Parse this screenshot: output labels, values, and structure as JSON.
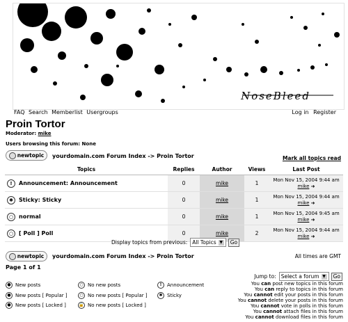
{
  "banner": {
    "logo_text": "NoseBleed"
  },
  "topnav": {
    "left": [
      "FAQ",
      "Search",
      "Memberlist",
      "Usergroups"
    ],
    "right": [
      "Log in",
      "Register"
    ]
  },
  "forum": {
    "title": "Proin Tortor",
    "moderator_label": "Moderator:",
    "moderator_name": "mike",
    "browsing": "Users browsing this forum: None"
  },
  "newtopic_label": "newtopic",
  "breadcrumb": "yourdomain.com Forum Index -> Proin Tortor",
  "mark_all": "Mark all topics read",
  "table": {
    "headers": [
      "Topics",
      "Replies",
      "Author",
      "Views",
      "Last Post"
    ],
    "rows": [
      {
        "icon": "announcement-icon",
        "title": "Announcement: Announcement",
        "replies": "0",
        "author": "mike",
        "views": "1",
        "last_date": "Mon Nov 15, 2004 9:44 am",
        "last_user": "mike"
      },
      {
        "icon": "sticky-icon",
        "title": "Sticky: Sticky",
        "replies": "0",
        "author": "mike",
        "views": "1",
        "last_date": "Mon Nov 15, 2004 9:44 am",
        "last_user": "mike"
      },
      {
        "icon": "folder-icon",
        "title": "normal",
        "replies": "0",
        "author": "mike",
        "views": "1",
        "last_date": "Mon Nov 15, 2004 9:45 am",
        "last_user": "mike"
      },
      {
        "icon": "poll-icon",
        "title": "[ Poll ] Poll",
        "replies": "0",
        "author": "mike",
        "views": "2",
        "last_date": "Mon Nov 15, 2004 9:44 am",
        "last_user": "mike"
      }
    ]
  },
  "display_topics": {
    "label": "Display topics from previous:",
    "value": "All Topics",
    "go": "Go"
  },
  "times": "All times are GMT",
  "pageof": "Page 1 of 1",
  "legend": [
    "New posts",
    "No new posts",
    "Announcement",
    "New posts [ Popular ]",
    "No new posts [ Popular ]",
    "Sticky",
    "New posts [ Locked ]",
    "No new posts [ Locked ]"
  ],
  "jump": {
    "label": "Jump to:",
    "value": "Select a forum",
    "go": "Go"
  },
  "permissions": [
    {
      "pre": "You",
      "verb": "can",
      "post": "post new topics in this forum"
    },
    {
      "pre": "You",
      "verb": "can",
      "post": "reply to topics in this forum"
    },
    {
      "pre": "You",
      "verb": "cannot",
      "post": "edit your posts in this forum"
    },
    {
      "pre": "You",
      "verb": "cannot",
      "post": "delete your posts in this forum"
    },
    {
      "pre": "You",
      "verb": "cannot",
      "post": "vote in polls in this forum"
    },
    {
      "pre": "You",
      "verb": "cannot",
      "post": "attach files in this forum"
    },
    {
      "pre": "You",
      "verb": "cannot",
      "post": "download files in this forum"
    }
  ]
}
